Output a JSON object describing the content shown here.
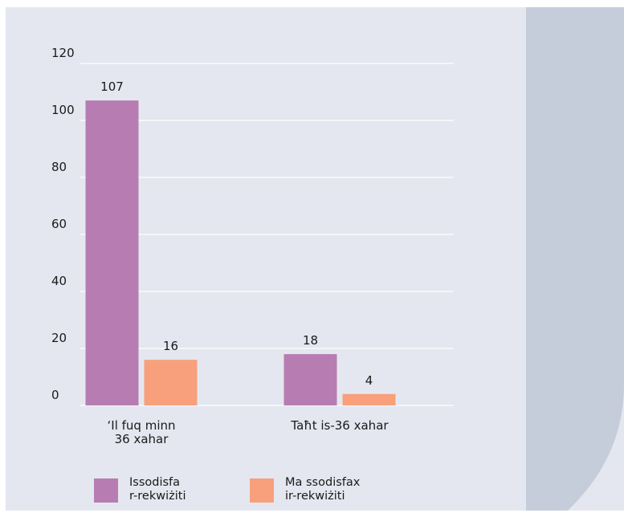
{
  "chart_data": {
    "type": "bar",
    "categories": [
      "‘Il fuq minn\n36 xahar",
      "Taħt is-36 xahar"
    ],
    "series": [
      {
        "name": "Issodisfa\nr-rekwiżiti",
        "values": [
          107,
          18
        ],
        "color": "#b77db2"
      },
      {
        "name": "Ma ssodisfax\nir-rekwiżiti",
        "values": [
          16,
          4
        ],
        "color": "#f8a07c"
      }
    ],
    "y_ticks": [
      0,
      20,
      40,
      60,
      80,
      100,
      120
    ],
    "ylim": [
      0,
      120
    ],
    "grid": true,
    "legend_position": "bottom-left"
  },
  "colors": {
    "background": "#e4e7ef",
    "side_panel": "#c6cdda",
    "gridline": "#ffffff"
  }
}
